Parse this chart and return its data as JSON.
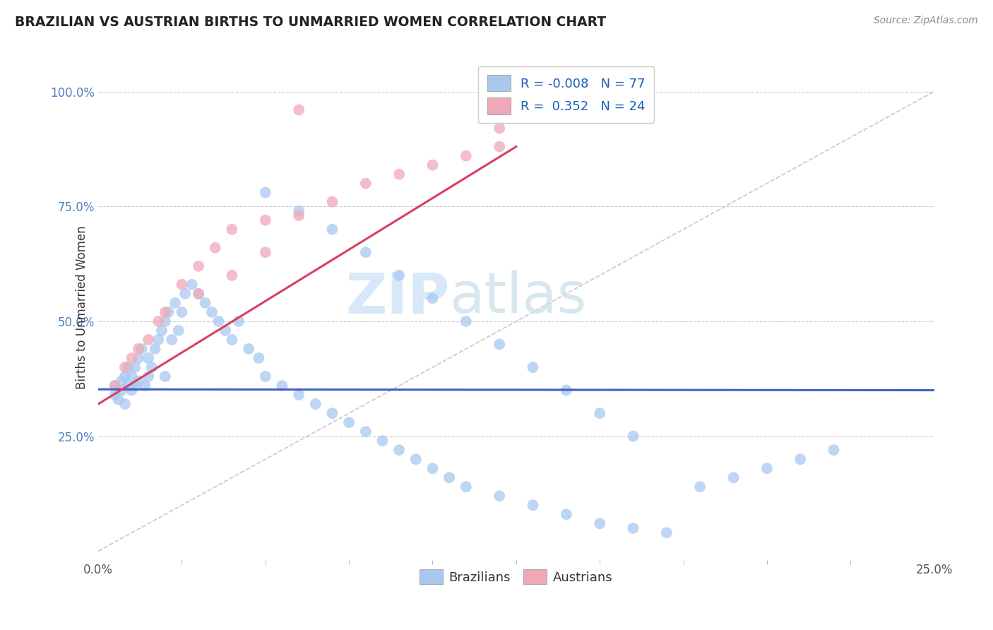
{
  "title": "BRAZILIAN VS AUSTRIAN BIRTHS TO UNMARRIED WOMEN CORRELATION CHART",
  "source": "Source: ZipAtlas.com",
  "ylabel": "Births to Unmarried Women",
  "xlim": [
    0.0,
    0.25
  ],
  "ylim": [
    -0.02,
    1.08
  ],
  "R_blue": -0.008,
  "N_blue": 77,
  "R_pink": 0.352,
  "N_pink": 24,
  "color_blue": "#a8c8f0",
  "color_pink": "#f0a8b8",
  "line_blue": "#4060c8",
  "line_pink": "#d84060",
  "line_ref_color": "#c8c8c8",
  "watermark_zip": "ZIP",
  "watermark_atlas": "atlas",
  "watermark_color": "#d8e8f8",
  "brazil_x": [
    0.005,
    0.005,
    0.006,
    0.007,
    0.007,
    0.008,
    0.008,
    0.009,
    0.009,
    0.01,
    0.01,
    0.011,
    0.011,
    0.012,
    0.012,
    0.013,
    0.014,
    0.015,
    0.015,
    0.016,
    0.017,
    0.018,
    0.019,
    0.02,
    0.02,
    0.021,
    0.022,
    0.023,
    0.024,
    0.025,
    0.026,
    0.028,
    0.03,
    0.032,
    0.034,
    0.036,
    0.038,
    0.04,
    0.042,
    0.045,
    0.048,
    0.05,
    0.055,
    0.06,
    0.065,
    0.07,
    0.075,
    0.08,
    0.085,
    0.09,
    0.095,
    0.1,
    0.105,
    0.11,
    0.12,
    0.13,
    0.14,
    0.15,
    0.16,
    0.17,
    0.18,
    0.19,
    0.2,
    0.21,
    0.22,
    0.05,
    0.06,
    0.07,
    0.08,
    0.09,
    0.1,
    0.11,
    0.12,
    0.13,
    0.14,
    0.15,
    0.16
  ],
  "brazil_y": [
    0.36,
    0.34,
    0.33,
    0.35,
    0.37,
    0.32,
    0.38,
    0.36,
    0.4,
    0.35,
    0.38,
    0.36,
    0.4,
    0.42,
    0.37,
    0.44,
    0.36,
    0.38,
    0.42,
    0.4,
    0.44,
    0.46,
    0.48,
    0.5,
    0.38,
    0.52,
    0.46,
    0.54,
    0.48,
    0.52,
    0.56,
    0.58,
    0.56,
    0.54,
    0.52,
    0.5,
    0.48,
    0.46,
    0.5,
    0.44,
    0.42,
    0.38,
    0.36,
    0.34,
    0.32,
    0.3,
    0.28,
    0.26,
    0.24,
    0.22,
    0.2,
    0.18,
    0.16,
    0.14,
    0.12,
    0.1,
    0.08,
    0.06,
    0.05,
    0.04,
    0.14,
    0.16,
    0.18,
    0.2,
    0.22,
    0.78,
    0.74,
    0.7,
    0.65,
    0.6,
    0.55,
    0.5,
    0.45,
    0.4,
    0.35,
    0.3,
    0.25
  ],
  "austria_x": [
    0.005,
    0.008,
    0.01,
    0.012,
    0.015,
    0.018,
    0.02,
    0.025,
    0.03,
    0.035,
    0.04,
    0.05,
    0.06,
    0.07,
    0.08,
    0.09,
    0.1,
    0.11,
    0.12,
    0.03,
    0.04,
    0.05,
    0.12,
    0.06
  ],
  "austria_y": [
    0.36,
    0.4,
    0.42,
    0.44,
    0.46,
    0.5,
    0.52,
    0.58,
    0.62,
    0.66,
    0.7,
    0.72,
    0.73,
    0.76,
    0.8,
    0.82,
    0.84,
    0.86,
    0.88,
    0.56,
    0.6,
    0.65,
    0.92,
    0.96
  ],
  "blue_line_y0": 0.352,
  "blue_line_y1": 0.35,
  "pink_line_x0": 0.0,
  "pink_line_y0": 0.32,
  "pink_line_x1": 0.125,
  "pink_line_y1": 0.88
}
